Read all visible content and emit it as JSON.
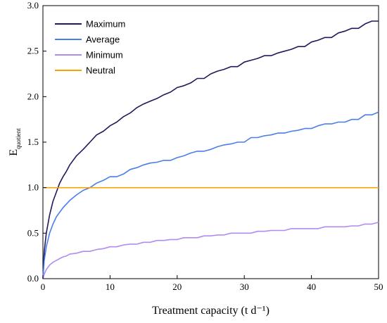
{
  "chart_data": {
    "type": "line",
    "xlabel": "Treatment capacity (t d⁻¹)",
    "ylabel_main": "E",
    "ylabel_sub": "quotient",
    "xlim": [
      0,
      50
    ],
    "ylim": [
      0,
      3.0
    ],
    "x_ticks": [
      "0",
      "10",
      "20",
      "30",
      "40",
      "50"
    ],
    "y_ticks": [
      "0.0",
      "0.5",
      "1.0",
      "1.5",
      "2.0",
      "2.5",
      "3.0"
    ],
    "grid": false,
    "legend_position": "top-left",
    "series": [
      {
        "name": "Maximum",
        "color": "#1f1a5e",
        "x": [
          0,
          0.2,
          0.5,
          1,
          1.5,
          2,
          2.5,
          3,
          3.5,
          4,
          5,
          6,
          7,
          8,
          9,
          10,
          11,
          12,
          13,
          14,
          15,
          16,
          17,
          18,
          19,
          20,
          21,
          22,
          23,
          24,
          25,
          26,
          27,
          28,
          29,
          30,
          31,
          32,
          33,
          34,
          35,
          36,
          37,
          38,
          39,
          40,
          41,
          42,
          43,
          44,
          45,
          46,
          47,
          48,
          49,
          50
        ],
        "values": [
          0,
          0.3,
          0.5,
          0.7,
          0.85,
          0.95,
          1.05,
          1.12,
          1.18,
          1.25,
          1.35,
          1.42,
          1.5,
          1.58,
          1.62,
          1.68,
          1.72,
          1.78,
          1.82,
          1.88,
          1.92,
          1.95,
          1.98,
          2.02,
          2.05,
          2.1,
          2.12,
          2.15,
          2.2,
          2.2,
          2.25,
          2.28,
          2.3,
          2.33,
          2.33,
          2.38,
          2.4,
          2.42,
          2.45,
          2.45,
          2.48,
          2.5,
          2.52,
          2.55,
          2.55,
          2.6,
          2.62,
          2.65,
          2.65,
          2.7,
          2.72,
          2.75,
          2.75,
          2.8,
          2.83,
          2.83
        ]
      },
      {
        "name": "Average",
        "color": "#4a7fe8",
        "x": [
          0,
          0.2,
          0.5,
          1,
          1.5,
          2,
          2.5,
          3,
          3.5,
          4,
          5,
          6,
          7,
          8,
          9,
          10,
          11,
          12,
          13,
          14,
          15,
          16,
          17,
          18,
          19,
          20,
          21,
          22,
          23,
          24,
          25,
          26,
          27,
          28,
          29,
          30,
          31,
          32,
          33,
          34,
          35,
          36,
          37,
          38,
          39,
          40,
          41,
          42,
          43,
          44,
          45,
          46,
          47,
          48,
          49,
          50
        ],
        "values": [
          0,
          0.2,
          0.35,
          0.5,
          0.6,
          0.68,
          0.73,
          0.78,
          0.82,
          0.86,
          0.92,
          0.97,
          1.0,
          1.05,
          1.08,
          1.12,
          1.12,
          1.15,
          1.2,
          1.22,
          1.25,
          1.27,
          1.28,
          1.3,
          1.3,
          1.33,
          1.35,
          1.38,
          1.4,
          1.4,
          1.42,
          1.45,
          1.47,
          1.48,
          1.5,
          1.5,
          1.55,
          1.55,
          1.57,
          1.58,
          1.6,
          1.6,
          1.62,
          1.63,
          1.65,
          1.65,
          1.68,
          1.7,
          1.7,
          1.72,
          1.72,
          1.75,
          1.75,
          1.8,
          1.8,
          1.83
        ]
      },
      {
        "name": "Minimum",
        "color": "#b18cf0",
        "x": [
          0,
          0.2,
          0.5,
          1,
          1.5,
          2,
          2.5,
          3,
          3.5,
          4,
          5,
          6,
          7,
          8,
          9,
          10,
          11,
          12,
          13,
          14,
          15,
          16,
          17,
          18,
          19,
          20,
          21,
          22,
          23,
          24,
          25,
          26,
          27,
          28,
          29,
          30,
          31,
          32,
          33,
          34,
          35,
          36,
          37,
          38,
          39,
          40,
          41,
          42,
          43,
          44,
          45,
          46,
          47,
          48,
          49,
          50
        ],
        "values": [
          0,
          0.05,
          0.1,
          0.15,
          0.18,
          0.2,
          0.22,
          0.24,
          0.25,
          0.27,
          0.28,
          0.3,
          0.3,
          0.32,
          0.33,
          0.35,
          0.35,
          0.37,
          0.38,
          0.38,
          0.4,
          0.4,
          0.42,
          0.42,
          0.43,
          0.43,
          0.45,
          0.45,
          0.45,
          0.47,
          0.47,
          0.48,
          0.48,
          0.5,
          0.5,
          0.5,
          0.5,
          0.52,
          0.52,
          0.53,
          0.53,
          0.53,
          0.55,
          0.55,
          0.55,
          0.55,
          0.55,
          0.57,
          0.57,
          0.57,
          0.57,
          0.58,
          0.58,
          0.6,
          0.6,
          0.62
        ]
      },
      {
        "name": "Neutral",
        "color": "#f5a300",
        "x": [
          0,
          50
        ],
        "values": [
          1.0,
          1.0
        ]
      }
    ]
  }
}
